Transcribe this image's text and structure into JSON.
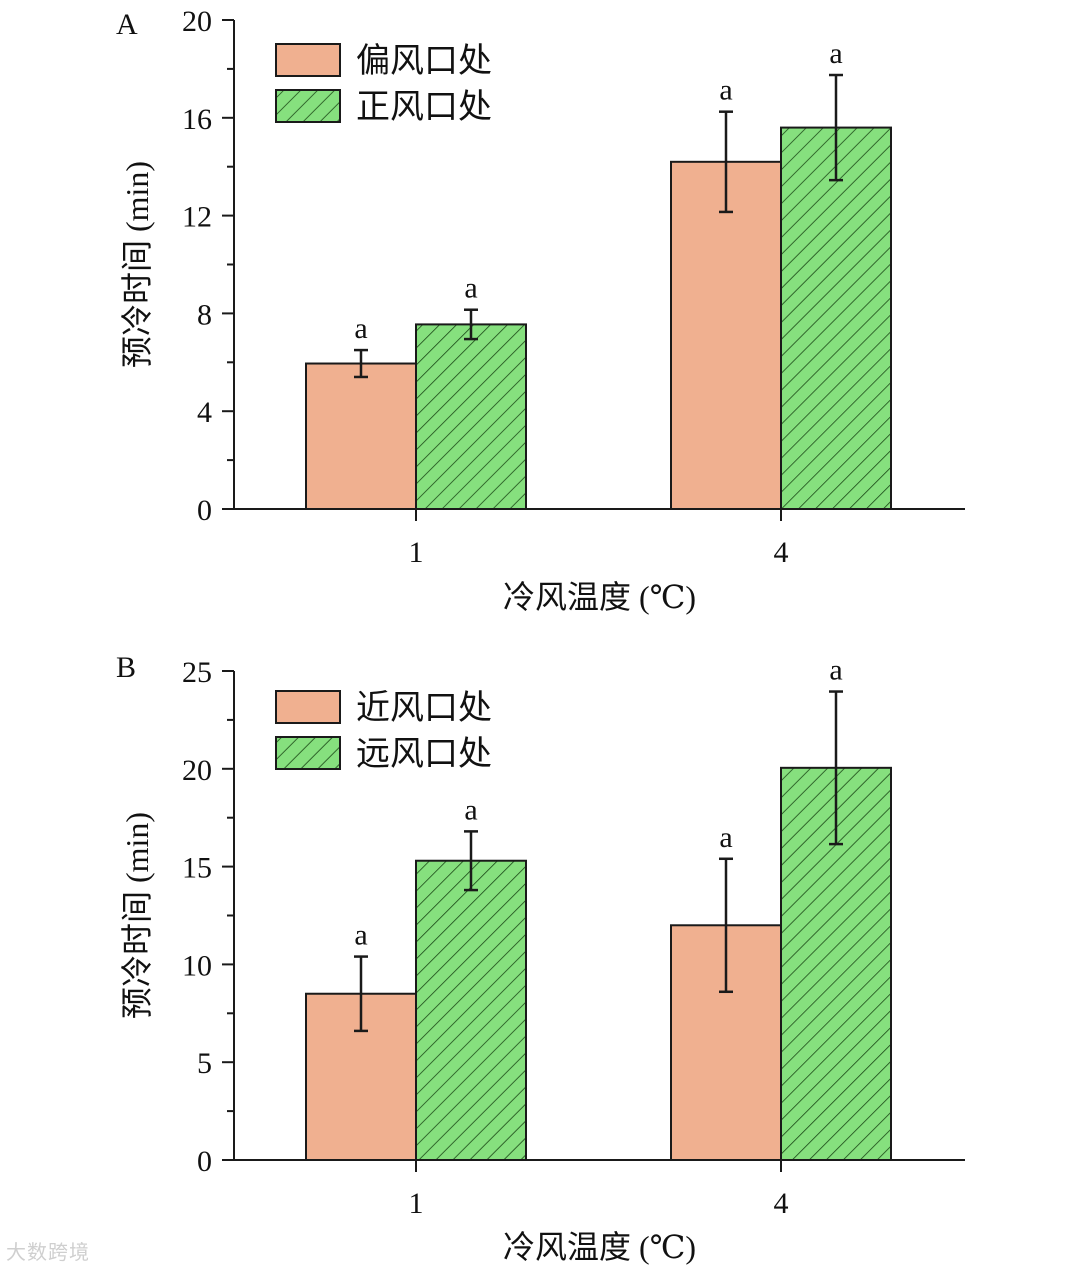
{
  "chart_data": [
    {
      "type": "bar",
      "panel_label": "A",
      "categories": [
        "1",
        "4"
      ],
      "xlabel": "冷风温度 (℃)",
      "ylabel": "预冷时间 (min)",
      "ylim": [
        0,
        20
      ],
      "yticks": [
        "0",
        "4",
        "8",
        "12",
        "16",
        "20"
      ],
      "legend_position": "top-left",
      "series": [
        {
          "name": "偏风口处",
          "values": [
            5.95,
            14.2
          ],
          "errors": [
            0.55,
            2.05
          ],
          "labels": [
            "a",
            "a"
          ],
          "color": "#f0b090",
          "pattern": "solid"
        },
        {
          "name": "正风口处",
          "values": [
            7.55,
            15.6
          ],
          "errors": [
            0.6,
            2.15
          ],
          "labels": [
            "a",
            "a"
          ],
          "color": "#86e07e",
          "pattern": "hatch"
        }
      ]
    },
    {
      "type": "bar",
      "panel_label": "B",
      "categories": [
        "1",
        "4"
      ],
      "xlabel": "冷风温度 (℃)",
      "ylabel": "预冷时间 (min)",
      "ylim": [
        0,
        25
      ],
      "yticks": [
        "0",
        "5",
        "10",
        "15",
        "20",
        "25"
      ],
      "legend_position": "top-left",
      "series": [
        {
          "name": "近风口处",
          "values": [
            8.5,
            12.0
          ],
          "errors": [
            1.9,
            3.4
          ],
          "labels": [
            "a",
            "a"
          ],
          "color": "#f0b090",
          "pattern": "solid"
        },
        {
          "name": "远风口处",
          "values": [
            15.3,
            20.05
          ],
          "errors": [
            1.5,
            3.9
          ],
          "labels": [
            "a",
            "a"
          ],
          "color": "#86e07e",
          "pattern": "hatch"
        }
      ]
    }
  ],
  "watermark": "大数跨境"
}
